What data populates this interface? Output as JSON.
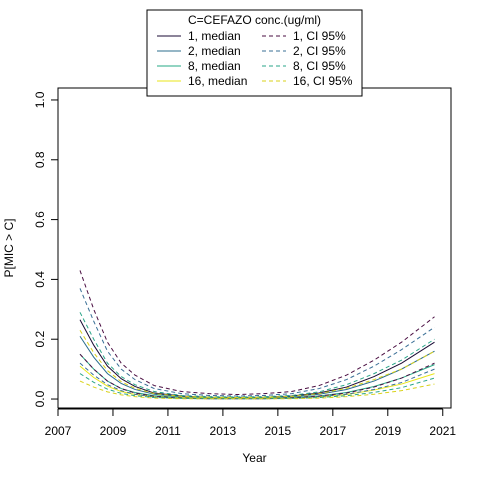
{
  "chart_data": {
    "type": "line",
    "title": "",
    "xlabel": "Year",
    "ylabel": "P[MIC > C]",
    "xlim": [
      2007.0,
      2021.3
    ],
    "ylim": [
      -0.03,
      1.04
    ],
    "x_ticks": [
      2007,
      2009,
      2011,
      2013,
      2015,
      2017,
      2019,
      2021
    ],
    "y_ticks": [
      0.0,
      0.2,
      0.4,
      0.6,
      0.8,
      1.0
    ],
    "x_tick_labels": [
      "2007",
      "2009",
      "2011",
      "2013",
      "2015",
      "2017",
      "2019",
      "2021"
    ],
    "y_tick_labels": [
      "0.0",
      "0.2",
      "0.4",
      "0.6",
      "0.8",
      "1.0"
    ],
    "grid": false,
    "legend": {
      "title": "C=CEFAZO conc.(ug/ml)",
      "placement": "top-center",
      "columns": 2
    },
    "x": [
      2007.8,
      2008.3,
      2008.8,
      2009.3,
      2009.8,
      2010.5,
      2011.5,
      2012.5,
      2013.5,
      2014.5,
      2015.5,
      2016.5,
      2017.5,
      2018.5,
      2019.5,
      2020.7
    ],
    "series": [
      {
        "name": "1, median",
        "color": "#1a0a33",
        "dash": "solid",
        "values": [
          0.265,
          0.18,
          0.11,
          0.068,
          0.042,
          0.02,
          0.01,
          0.006,
          0.005,
          0.006,
          0.01,
          0.02,
          0.04,
          0.075,
          0.12,
          0.19
        ]
      },
      {
        "name": "2, median",
        "color": "#2b6e8e",
        "dash": "solid",
        "values": [
          0.21,
          0.14,
          0.085,
          0.052,
          0.032,
          0.016,
          0.008,
          0.005,
          0.004,
          0.005,
          0.008,
          0.016,
          0.032,
          0.06,
          0.1,
          0.16
        ]
      },
      {
        "name": "8, median",
        "color": "#26a885",
        "dash": "solid",
        "values": [
          0.15,
          0.1,
          0.06,
          0.035,
          0.022,
          0.011,
          0.005,
          0.003,
          0.003,
          0.003,
          0.005,
          0.01,
          0.022,
          0.042,
          0.07,
          0.115
        ]
      },
      {
        "name": "16, median",
        "color": "#e8e619",
        "dash": "solid",
        "values": [
          0.11,
          0.072,
          0.043,
          0.025,
          0.015,
          0.008,
          0.004,
          0.002,
          0.002,
          0.002,
          0.004,
          0.007,
          0.015,
          0.03,
          0.05,
          0.085
        ]
      },
      {
        "name": "1, CI 95%",
        "color": "#4a0e42",
        "dash": "dashed",
        "group": "upper",
        "values": [
          0.43,
          0.3,
          0.19,
          0.12,
          0.08,
          0.045,
          0.025,
          0.018,
          0.015,
          0.018,
          0.025,
          0.045,
          0.08,
          0.13,
          0.19,
          0.275
        ]
      },
      {
        "name": "1, CI 95%",
        "color": "#4a0e42",
        "dash": "dashed",
        "group": "lower",
        "values": [
          0.15,
          0.1,
          0.06,
          0.035,
          0.02,
          0.009,
          0.003,
          0.001,
          0.001,
          0.001,
          0.004,
          0.01,
          0.02,
          0.04,
          0.07,
          0.12
        ]
      },
      {
        "name": "2, CI 95%",
        "color": "#3a6f96",
        "dash": "dashed",
        "group": "upper",
        "values": [
          0.37,
          0.26,
          0.16,
          0.1,
          0.065,
          0.035,
          0.018,
          0.012,
          0.01,
          0.012,
          0.018,
          0.035,
          0.065,
          0.11,
          0.165,
          0.24
        ]
      },
      {
        "name": "2, CI 95%",
        "color": "#3a6f96",
        "dash": "dashed",
        "group": "lower",
        "values": [
          0.12,
          0.08,
          0.048,
          0.028,
          0.016,
          0.007,
          0.002,
          0.001,
          0.001,
          0.001,
          0.003,
          0.008,
          0.016,
          0.032,
          0.055,
          0.1
        ]
      },
      {
        "name": "8, CI 95%",
        "color": "#2aa588",
        "dash": "dashed",
        "group": "upper",
        "values": [
          0.29,
          0.2,
          0.12,
          0.075,
          0.048,
          0.025,
          0.012,
          0.008,
          0.007,
          0.008,
          0.012,
          0.024,
          0.048,
          0.085,
          0.13,
          0.2
        ]
      },
      {
        "name": "8, CI 95%",
        "color": "#2aa588",
        "dash": "dashed",
        "group": "lower",
        "values": [
          0.085,
          0.056,
          0.033,
          0.019,
          0.011,
          0.005,
          0.002,
          0.001,
          0.001,
          0.001,
          0.002,
          0.005,
          0.011,
          0.022,
          0.038,
          0.07
        ]
      },
      {
        "name": "16, CI 95%",
        "color": "#d9d21a",
        "dash": "dashed",
        "group": "upper",
        "values": [
          0.23,
          0.155,
          0.095,
          0.058,
          0.036,
          0.018,
          0.009,
          0.006,
          0.005,
          0.006,
          0.009,
          0.018,
          0.036,
          0.065,
          0.1,
          0.16
        ]
      },
      {
        "name": "16, CI 95%",
        "color": "#d9d21a",
        "dash": "dashed",
        "group": "lower",
        "values": [
          0.06,
          0.04,
          0.024,
          0.014,
          0.008,
          0.003,
          0.001,
          0.001,
          0.001,
          0.001,
          0.001,
          0.003,
          0.008,
          0.016,
          0.028,
          0.05
        ]
      }
    ],
    "legend_entries": [
      {
        "label": "1, median",
        "color": "#1a0a33",
        "dash": "solid"
      },
      {
        "label": "1, CI 95%",
        "color": "#4a0e42",
        "dash": "dashed"
      },
      {
        "label": "2, median",
        "color": "#2b6e8e",
        "dash": "solid"
      },
      {
        "label": "2, CI 95%",
        "color": "#3a6f96",
        "dash": "dashed"
      },
      {
        "label": "8, median",
        "color": "#26a885",
        "dash": "solid"
      },
      {
        "label": "8, CI 95%",
        "color": "#2aa588",
        "dash": "dashed"
      },
      {
        "label": "16, median",
        "color": "#e8e619",
        "dash": "solid"
      },
      {
        "label": "16, CI 95%",
        "color": "#d9d21a",
        "dash": "dashed"
      }
    ]
  }
}
